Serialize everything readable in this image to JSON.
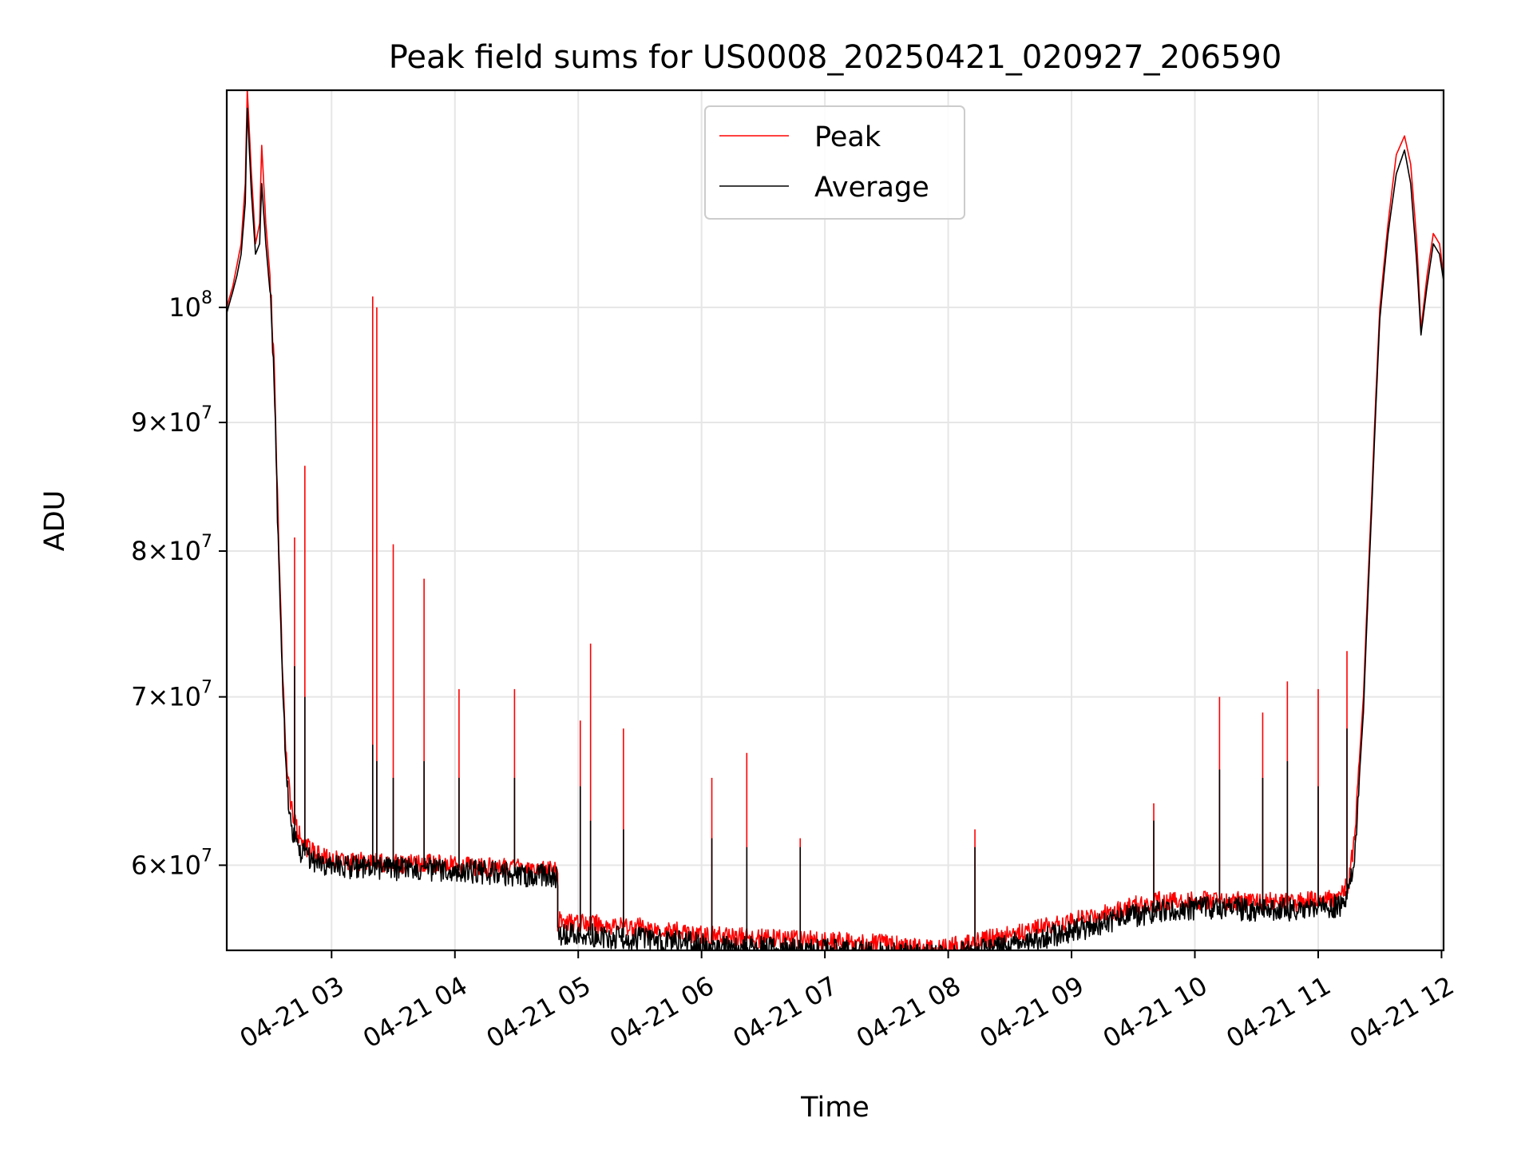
{
  "chart_data": {
    "type": "line",
    "title": "Peak field sums for US0008_20250421_020927_206590",
    "xlabel": "Time",
    "ylabel": "ADU",
    "yscale": "log",
    "grid": true,
    "legend_position": "top-center",
    "xlim": [
      "2025-04-21 02:09",
      "2025-04-21 12:01"
    ],
    "ylim": [
      55500000,
      122000000
    ],
    "x_ticks": [
      {
        "value": "2025-04-21 03:00",
        "label": "04-21 03"
      },
      {
        "value": "2025-04-21 04:00",
        "label": "04-21 04"
      },
      {
        "value": "2025-04-21 05:00",
        "label": "04-21 05"
      },
      {
        "value": "2025-04-21 06:00",
        "label": "04-21 06"
      },
      {
        "value": "2025-04-21 07:00",
        "label": "04-21 07"
      },
      {
        "value": "2025-04-21 08:00",
        "label": "04-21 08"
      },
      {
        "value": "2025-04-21 09:00",
        "label": "04-21 09"
      },
      {
        "value": "2025-04-21 10:00",
        "label": "04-21 10"
      },
      {
        "value": "2025-04-21 11:00",
        "label": "04-21 11"
      },
      {
        "value": "2025-04-21 12:00",
        "label": "04-21 12"
      }
    ],
    "y_ticks": [
      {
        "value": 60000000,
        "base": "6",
        "exp": "7"
      },
      {
        "value": 70000000,
        "base": "7",
        "exp": "7"
      },
      {
        "value": 80000000,
        "base": "8",
        "exp": "7"
      },
      {
        "value": 90000000,
        "base": "9",
        "exp": "7"
      },
      {
        "value": 100000000,
        "base": "",
        "exp": "8"
      }
    ],
    "series": [
      {
        "name": "Peak",
        "color": "#ff0000",
        "x": [
          "2025-04-21 02:09",
          "2025-04-21 02:12",
          "2025-04-21 02:14",
          "2025-04-21 02:16",
          "2025-04-21 02:18",
          "2025-04-21 02:19",
          "2025-04-21 02:21",
          "2025-04-21 02:23",
          "2025-04-21 02:25",
          "2025-04-21 02:26",
          "2025-04-21 02:28",
          "2025-04-21 02:30",
          "2025-04-21 02:32",
          "2025-04-21 02:34",
          "2025-04-21 02:36",
          "2025-04-21 02:38",
          "2025-04-21 02:40",
          "2025-04-21 02:43",
          "2025-04-21 02:46",
          "2025-04-21 02:50",
          "2025-04-21 02:55",
          "2025-04-21 03:00",
          "2025-04-21 03:10",
          "2025-04-21 03:20",
          "2025-04-21 03:30",
          "2025-04-21 03:45",
          "2025-04-21 04:00",
          "2025-04-21 04:15",
          "2025-04-21 04:30",
          "2025-04-21 04:50",
          "2025-04-21 04:50",
          "2025-04-21 05:00",
          "2025-04-21 05:30",
          "2025-04-21 06:00",
          "2025-04-21 06:30",
          "2025-04-21 07:00",
          "2025-04-21 07:30",
          "2025-04-21 07:55",
          "2025-04-21 08:10",
          "2025-04-21 08:30",
          "2025-04-21 09:00",
          "2025-04-21 09:30",
          "2025-04-21 09:45",
          "2025-04-21 10:00",
          "2025-04-21 10:15",
          "2025-04-21 10:30",
          "2025-04-21 10:45",
          "2025-04-21 11:00",
          "2025-04-21 11:10",
          "2025-04-21 11:15",
          "2025-04-21 11:18",
          "2025-04-21 11:22",
          "2025-04-21 11:26",
          "2025-04-21 11:30",
          "2025-04-21 11:34",
          "2025-04-21 11:38",
          "2025-04-21 11:42",
          "2025-04-21 11:45",
          "2025-04-21 11:48",
          "2025-04-21 11:50",
          "2025-04-21 11:53",
          "2025-04-21 11:56",
          "2025-04-21 11:59",
          "2025-04-21 12:01"
        ],
        "y": [
          100000000,
          102000000,
          104000000,
          106000000,
          112000000,
          122000000,
          113000000,
          106000000,
          108000000,
          116000000,
          108000000,
          103000000,
          95000000,
          82000000,
          72000000,
          66000000,
          63500000,
          62000000,
          61200000,
          60800000,
          60500000,
          60300000,
          60200000,
          60200000,
          60100000,
          60100000,
          60000000,
          59900000,
          59800000,
          59700000,
          57000000,
          56900000,
          56700000,
          56300000,
          56100000,
          56000000,
          55800000,
          55500000,
          55900000,
          56300000,
          57000000,
          57800000,
          58100000,
          58100000,
          58100000,
          58000000,
          58000000,
          58100000,
          58200000,
          59000000,
          62000000,
          70000000,
          84000000,
          100000000,
          108000000,
          115000000,
          117000000,
          114000000,
          106000000,
          98000000,
          103000000,
          107000000,
          106000000,
          103000000
        ]
      },
      {
        "name": "Average",
        "color": "#000000",
        "x": [
          "2025-04-21 02:09",
          "2025-04-21 02:12",
          "2025-04-21 02:14",
          "2025-04-21 02:16",
          "2025-04-21 02:18",
          "2025-04-21 02:19",
          "2025-04-21 02:21",
          "2025-04-21 02:23",
          "2025-04-21 02:25",
          "2025-04-21 02:26",
          "2025-04-21 02:28",
          "2025-04-21 02:30",
          "2025-04-21 02:32",
          "2025-04-21 02:34",
          "2025-04-21 02:36",
          "2025-04-21 02:38",
          "2025-04-21 02:40",
          "2025-04-21 02:43",
          "2025-04-21 02:46",
          "2025-04-21 02:50",
          "2025-04-21 02:55",
          "2025-04-21 03:00",
          "2025-04-21 03:10",
          "2025-04-21 03:20",
          "2025-04-21 03:30",
          "2025-04-21 03:45",
          "2025-04-21 04:00",
          "2025-04-21 04:15",
          "2025-04-21 04:30",
          "2025-04-21 04:50",
          "2025-04-21 04:50",
          "2025-04-21 05:00",
          "2025-04-21 05:30",
          "2025-04-21 06:00",
          "2025-04-21 06:30",
          "2025-04-21 07:00",
          "2025-04-21 07:30",
          "2025-04-21 07:55",
          "2025-04-21 08:10",
          "2025-04-21 08:30",
          "2025-04-21 09:00",
          "2025-04-21 09:30",
          "2025-04-21 09:45",
          "2025-04-21 10:00",
          "2025-04-21 10:15",
          "2025-04-21 10:30",
          "2025-04-21 10:45",
          "2025-04-21 11:00",
          "2025-04-21 11:10",
          "2025-04-21 11:15",
          "2025-04-21 11:18",
          "2025-04-21 11:22",
          "2025-04-21 11:26",
          "2025-04-21 11:30",
          "2025-04-21 11:34",
          "2025-04-21 11:38",
          "2025-04-21 11:42",
          "2025-04-21 11:45",
          "2025-04-21 11:48",
          "2025-04-21 11:50",
          "2025-04-21 11:53",
          "2025-04-21 11:56",
          "2025-04-21 11:59",
          "2025-04-21 12:01"
        ],
        "y": [
          99500000,
          101500000,
          103000000,
          105000000,
          110000000,
          120000000,
          111000000,
          105000000,
          106000000,
          112000000,
          106000000,
          101500000,
          94000000,
          80500000,
          71000000,
          65000000,
          62500000,
          61200000,
          60600000,
          60300000,
          60100000,
          60000000,
          59900000,
          59900000,
          59800000,
          59800000,
          59700000,
          59600000,
          59500000,
          59400000,
          56400000,
          56300000,
          56100000,
          55800000,
          55600000,
          55500000,
          55300000,
          55200000,
          55400000,
          55800000,
          56500000,
          57300000,
          57600000,
          57700000,
          57700000,
          57600000,
          57600000,
          57700000,
          57800000,
          58500000,
          61000000,
          69000000,
          83000000,
          99000000,
          107000000,
          113000000,
          115500000,
          112000000,
          104000000,
          97500000,
          102000000,
          106000000,
          105000000,
          102500000
        ]
      }
    ],
    "spikes": [
      {
        "x": "2025-04-21 03:20",
        "peak": 101000000,
        "avg": 67000000
      },
      {
        "x": "2025-04-21 03:22",
        "peak": 100000000,
        "avg": 66000000
      },
      {
        "x": "2025-04-21 03:30",
        "peak": 80500000,
        "avg": 65000000
      },
      {
        "x": "2025-04-21 03:45",
        "peak": 78000000,
        "avg": 66000000
      },
      {
        "x": "2025-04-21 02:47",
        "peak": 86500000,
        "avg": 70000000
      },
      {
        "x": "2025-04-21 02:42",
        "peak": 81000000,
        "avg": 72000000
      },
      {
        "x": "2025-04-21 04:02",
        "peak": 70500000,
        "avg": 65000000
      },
      {
        "x": "2025-04-21 04:29",
        "peak": 70500000,
        "avg": 65000000
      },
      {
        "x": "2025-04-21 05:06",
        "peak": 73500000,
        "avg": 62500000
      },
      {
        "x": "2025-04-21 05:01",
        "peak": 68500000,
        "avg": 64500000
      },
      {
        "x": "2025-04-21 05:22",
        "peak": 68000000,
        "avg": 62000000
      },
      {
        "x": "2025-04-21 06:05",
        "peak": 65000000,
        "avg": 61500000
      },
      {
        "x": "2025-04-21 06:22",
        "peak": 66500000,
        "avg": 61000000
      },
      {
        "x": "2025-04-21 06:48",
        "peak": 61500000,
        "avg": 61000000
      },
      {
        "x": "2025-04-21 08:13",
        "peak": 62000000,
        "avg": 61000000
      },
      {
        "x": "2025-04-21 09:40",
        "peak": 63500000,
        "avg": 62500000
      },
      {
        "x": "2025-04-21 10:12",
        "peak": 70000000,
        "avg": 65500000
      },
      {
        "x": "2025-04-21 10:33",
        "peak": 69000000,
        "avg": 65000000
      },
      {
        "x": "2025-04-21 10:45",
        "peak": 71000000,
        "avg": 66000000
      },
      {
        "x": "2025-04-21 11:00",
        "peak": 70500000,
        "avg": 64500000
      },
      {
        "x": "2025-04-21 11:14",
        "peak": 73000000,
        "avg": 68000000
      }
    ]
  }
}
